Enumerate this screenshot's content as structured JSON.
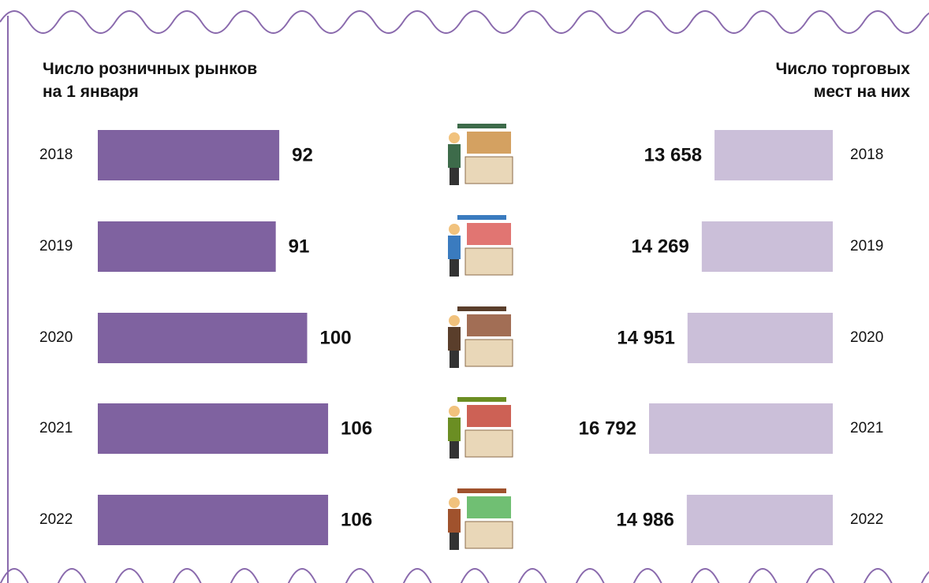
{
  "chart_data": [
    {
      "type": "bar",
      "title": "Число розничных рынков\nна 1 января",
      "categories": [
        "2018",
        "2019",
        "2020",
        "2021",
        "2022"
      ],
      "values": [
        92,
        91,
        100,
        106,
        106
      ],
      "color": "#7f62a0",
      "xlim": [
        40,
        120
      ]
    },
    {
      "type": "bar",
      "title": "Число торговых\nмест на них",
      "categories": [
        "2018",
        "2019",
        "2020",
        "2021",
        "2022"
      ],
      "values": [
        13658,
        14269,
        14951,
        16792,
        14986
      ],
      "value_labels": [
        "13 658",
        "14 269",
        "14 951",
        "16 792",
        "14 986"
      ],
      "color": "#cbbfd9",
      "xlim": [
        8000,
        20000
      ]
    }
  ]
}
